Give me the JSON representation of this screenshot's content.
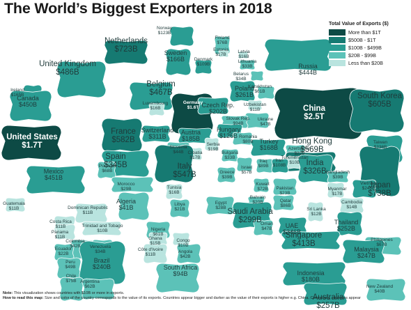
{
  "title": "The World’s Biggest Exporters in 2018",
  "legend": {
    "title": "Total Value of Exports ($)",
    "items": [
      {
        "label": "More than $1T",
        "color": "#0d4a45"
      },
      {
        "label": "$500B - $1T",
        "color": "#167a72"
      },
      {
        "label": "$100B - $499B",
        "color": "#2a9d93"
      },
      {
        "label": "$20B - $99B",
        "color": "#5cc2b8"
      },
      {
        "label": "Less than $20B",
        "color": "#b9e4df"
      }
    ]
  },
  "notes": {
    "note_label": "Note:",
    "note_text": "This visualization shows countries with $10B or more in exports.",
    "how_label": "How to read this map:",
    "how_text": "Size and color of the country corresponds to the value of its exports. Countries appear bigger and darker as the value of their exports is higher e.g. China. Conversely, countries appear"
  },
  "countries": [
    {
      "name": "Netherlands",
      "value": "$723B",
      "tier": 1
    },
    {
      "name": "Norway",
      "value": "$123B",
      "tier": 2
    },
    {
      "name": "Finland",
      "value": "$76B",
      "tier": 3
    },
    {
      "name": "Sweden",
      "value": "$166B",
      "tier": 2
    },
    {
      "name": "Estonia",
      "value": "$17B",
      "tier": 4
    },
    {
      "name": "Latvia",
      "value": "$16B",
      "tier": 4
    },
    {
      "name": "Denmark",
      "value": "$109B",
      "tier": 2
    },
    {
      "name": "Lithuania",
      "value": "$33B",
      "tier": 3
    },
    {
      "name": "Belarus",
      "value": "$34B",
      "tier": 3
    },
    {
      "name": "Russia",
      "value": "$444B",
      "tier": 2
    },
    {
      "name": "United Kingdom",
      "value": "$486B",
      "tier": 2
    },
    {
      "name": "Ireland",
      "value": "$165B",
      "tier": 2
    },
    {
      "name": "Belgium",
      "value": "$467B",
      "tier": 2
    },
    {
      "name": "Poland",
      "value": "$261B",
      "tier": 2
    },
    {
      "name": "Kazakhstan",
      "value": "$61B",
      "tier": 3
    },
    {
      "name": "Canada",
      "value": "$450B",
      "tier": 2
    },
    {
      "name": "Luxembourg",
      "value": "$16B",
      "tier": 4
    },
    {
      "name": "Germany",
      "value": "$1.6T",
      "tier": 0
    },
    {
      "name": "Czech Rep.",
      "value": "$202B",
      "tier": 2
    },
    {
      "name": "Uzbekistan",
      "value": "$11B",
      "tier": 4
    },
    {
      "name": "China",
      "value": "$2.5T",
      "tier": 0
    },
    {
      "name": "South Korea",
      "value": "$605B",
      "tier": 1
    },
    {
      "name": "Ukraine",
      "value": "$47B",
      "tier": 3
    },
    {
      "name": "Slovak Rep.",
      "value": "$94B",
      "tier": 3
    },
    {
      "name": "Hungary",
      "value": "$126B",
      "tier": 2
    },
    {
      "name": "Romania",
      "value": "$80B",
      "tier": 3
    },
    {
      "name": "United States",
      "value": "$1.7T",
      "tier": 0
    },
    {
      "name": "France",
      "value": "$582B",
      "tier": 1
    },
    {
      "name": "Switzerland",
      "value": "$311B",
      "tier": 2
    },
    {
      "name": "Austria",
      "value": "$185B",
      "tier": 2
    },
    {
      "name": "Serbia",
      "value": "$19B",
      "tier": 4
    },
    {
      "name": "Turkey",
      "value": "$168B",
      "tier": 2
    },
    {
      "name": "Azerbaizan",
      "value": "$22B",
      "tier": 3
    },
    {
      "name": "Hong Kong",
      "value": "$569B",
      "tier": 1
    },
    {
      "name": "Taiwan",
      "value": "$336B",
      "tier": 2
    },
    {
      "name": "Slovenia",
      "value": "$44B",
      "tier": 3
    },
    {
      "name": "Croatia",
      "value": "$17B",
      "tier": 4
    },
    {
      "name": "Bulgaria",
      "value": "$33B",
      "tier": 3
    },
    {
      "name": "Turkmenistan",
      "value": "$10B",
      "tier": 4
    },
    {
      "name": "Spain",
      "value": "$345B",
      "tier": 2
    },
    {
      "name": "Italy",
      "value": "$547B",
      "tier": 1
    },
    {
      "name": "Israel",
      "value": "$57B",
      "tier": 3
    },
    {
      "name": "Iraq",
      "value": "$89B",
      "tier": 3
    },
    {
      "name": "Iran",
      "value": "$108B",
      "tier": 2
    },
    {
      "name": "India",
      "value": "$326B",
      "tier": 2
    },
    {
      "name": "Japan",
      "value": "$738B",
      "tier": 1
    },
    {
      "name": "Portugal",
      "value": "$68B",
      "tier": 3
    },
    {
      "name": "Greece",
      "value": "$39B",
      "tier": 3
    },
    {
      "name": "Bangladesh",
      "value": "$39B",
      "tier": 3
    },
    {
      "name": "Mexico",
      "value": "$451B",
      "tier": 2
    },
    {
      "name": "Morocco",
      "value": "$29B",
      "tier": 3
    },
    {
      "name": "Tunisia",
      "value": "$16B",
      "tier": 4
    },
    {
      "name": "Kuwait",
      "value": "$72B",
      "tier": 3
    },
    {
      "name": "Pakistan",
      "value": "$23B",
      "tier": 3
    },
    {
      "name": "Vietnam",
      "value": "$246B",
      "tier": 2
    },
    {
      "name": "Myanmar",
      "value": "$17B",
      "tier": 4
    },
    {
      "name": "Guatemala",
      "value": "$11B",
      "tier": 4
    },
    {
      "name": "Algeria",
      "value": "$41B",
      "tier": 3
    },
    {
      "name": "Egypt",
      "value": "$28B",
      "tier": 3
    },
    {
      "name": "Bahrain",
      "value": "$20B",
      "tier": 3
    },
    {
      "name": "Qatar",
      "value": "$86B",
      "tier": 3
    },
    {
      "name": "Cambodia",
      "value": "$14B",
      "tier": 4
    },
    {
      "name": "Dominican Republic",
      "value": "$11B",
      "tier": 4
    },
    {
      "name": "Libya",
      "value": "$21B",
      "tier": 3
    },
    {
      "name": "Saudi Arabia",
      "value": "$299B",
      "tier": 2
    },
    {
      "name": "Sri Lanka",
      "value": "$12B",
      "tier": 4
    },
    {
      "name": "Thailand",
      "value": "$252B",
      "tier": 2
    },
    {
      "name": "Costa Rica",
      "value": "$11B",
      "tier": 4
    },
    {
      "name": "Panama",
      "value": "$11B",
      "tier": 4
    },
    {
      "name": "Trinidad and Tobago",
      "value": "$10B",
      "tier": 4
    },
    {
      "name": "Oman",
      "value": "$47B",
      "tier": 3
    },
    {
      "name": "UAE",
      "value": "$346B",
      "tier": 2
    },
    {
      "name": "Nigeria",
      "value": "$61B",
      "tier": 3
    },
    {
      "name": "Ghana",
      "value": "$15B",
      "tier": 4
    },
    {
      "name": "Congo",
      "value": "$10B",
      "tier": 4
    },
    {
      "name": "Singapore",
      "value": "$413B",
      "tier": 2
    },
    {
      "name": "Philippines",
      "value": "$67B",
      "tier": 3
    },
    {
      "name": "Colombia",
      "value": "$42B",
      "tier": 3
    },
    {
      "name": "Venezuela",
      "value": "$34B",
      "tier": 3
    },
    {
      "name": "Ecuador",
      "value": "$22B",
      "tier": 3
    },
    {
      "name": "Côte d'Ivoire",
      "value": "$11B",
      "tier": 4
    },
    {
      "name": "Angola",
      "value": "$42B",
      "tier": 3
    },
    {
      "name": "Malaysia",
      "value": "$247B",
      "tier": 2
    },
    {
      "name": "Peru",
      "value": "$49B",
      "tier": 3
    },
    {
      "name": "Brazil",
      "value": "$240B",
      "tier": 2
    },
    {
      "name": "South Africa",
      "value": "$94B",
      "tier": 3
    },
    {
      "name": "Indonesia",
      "value": "$180B",
      "tier": 2
    },
    {
      "name": "Chile",
      "value": "$75B",
      "tier": 3
    },
    {
      "name": "Argentina",
      "value": "$62B",
      "tier": 3
    },
    {
      "name": "New Zealand",
      "value": "$40B",
      "tier": 3
    },
    {
      "name": "Australia",
      "value": "$257B",
      "tier": 2
    }
  ]
}
